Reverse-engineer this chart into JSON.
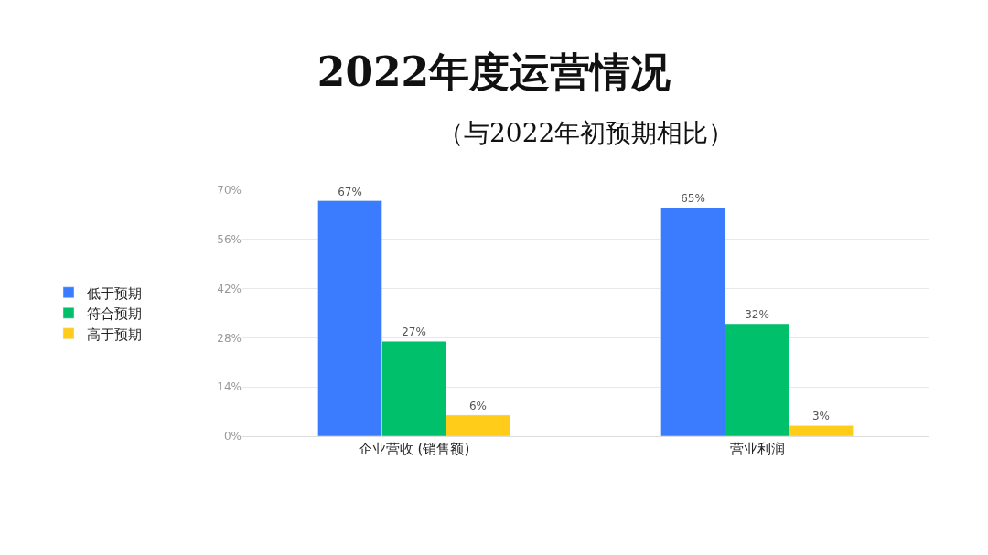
{
  "chart_data": {
    "type": "bar",
    "title": "2022年度运营情况",
    "subtitle": "（与2022年初预期相比）",
    "categories": [
      "企业营收 (销售额)",
      "营业利润"
    ],
    "series": [
      {
        "name": "低于预期",
        "color": "#3b7cff",
        "values": [
          67,
          65
        ],
        "value_labels": [
          "67%",
          "65%"
        ]
      },
      {
        "name": "符合预期",
        "color": "#00c06b",
        "values": [
          27,
          32
        ],
        "value_labels": [
          "27%",
          "32%"
        ]
      },
      {
        "name": "高于预期",
        "color": "#ffcc1a",
        "values": [
          6,
          3
        ],
        "value_labels": [
          "6%",
          "3%"
        ]
      }
    ],
    "ylim": [
      0,
      70
    ],
    "yticks": [
      {
        "value": 0,
        "label": "0%"
      },
      {
        "value": 14,
        "label": "14%"
      },
      {
        "value": 28,
        "label": "28%"
      },
      {
        "value": 42,
        "label": "42%"
      },
      {
        "value": 56,
        "label": "56%"
      },
      {
        "value": 70,
        "label": "70%"
      }
    ],
    "grid": "y",
    "legend": "left"
  }
}
